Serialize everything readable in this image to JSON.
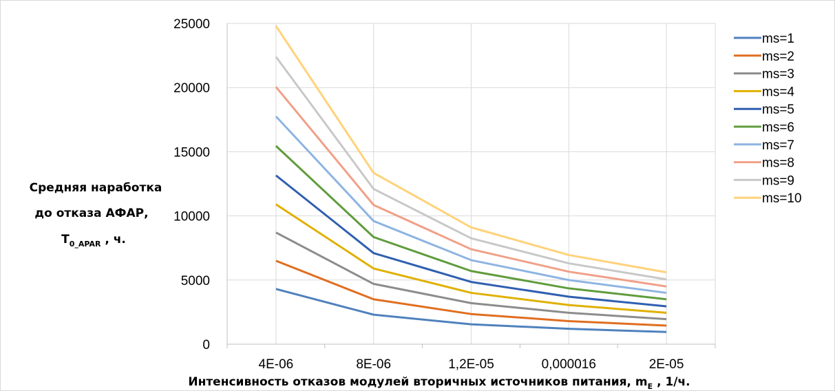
{
  "chart_data": {
    "type": "line",
    "categories": [
      "4E-06",
      "8E-06",
      "1,2E-05",
      "0,000016",
      "2E-05"
    ],
    "series": [
      {
        "name": "ms=1",
        "color": "#4f81bd",
        "values": [
          4300,
          2300,
          1550,
          1200,
          950
        ]
      },
      {
        "name": "ms=2",
        "color": "#e06e20",
        "values": [
          6500,
          3500,
          2350,
          1800,
          1450
        ]
      },
      {
        "name": "ms=3",
        "color": "#8c8c8c",
        "values": [
          8700,
          4700,
          3200,
          2450,
          1950
        ]
      },
      {
        "name": "ms=4",
        "color": "#e0b000",
        "values": [
          10900,
          5900,
          4000,
          3050,
          2450
        ]
      },
      {
        "name": "ms=5",
        "color": "#2f5fb0",
        "values": [
          13150,
          7100,
          4850,
          3700,
          2950
        ]
      },
      {
        "name": "ms=6",
        "color": "#5f9c3c",
        "values": [
          15450,
          8350,
          5700,
          4350,
          3500
        ]
      },
      {
        "name": "ms=7",
        "color": "#8db4e2",
        "values": [
          17750,
          9600,
          6550,
          5000,
          4000
        ]
      },
      {
        "name": "ms=8",
        "color": "#f0a088",
        "values": [
          20050,
          10850,
          7400,
          5650,
          4500
        ]
      },
      {
        "name": "ms=9",
        "color": "#c8c8c8",
        "values": [
          22400,
          12100,
          8250,
          6300,
          5050
        ]
      },
      {
        "name": "ms=10",
        "color": "#ffd27a",
        "values": [
          24800,
          13350,
          9100,
          6950,
          5600
        ]
      }
    ],
    "yticks": [
      "0",
      "5000",
      "10000",
      "15000",
      "20000",
      "25000"
    ],
    "ylim": [
      0,
      25000
    ],
    "ylabel_lines": [
      "Средняя наработка",
      "до отказа АФАР,"
    ],
    "ylabel_sym": {
      "main": "T",
      "sub": "0_APAR",
      "tail": " , ч."
    },
    "xlabel": {
      "main": "Интенсивность отказов модулей вторичных  источников питания, m",
      "sub": "E",
      "tail": " , 1/ч."
    },
    "grid": true,
    "legend_position": "right"
  }
}
